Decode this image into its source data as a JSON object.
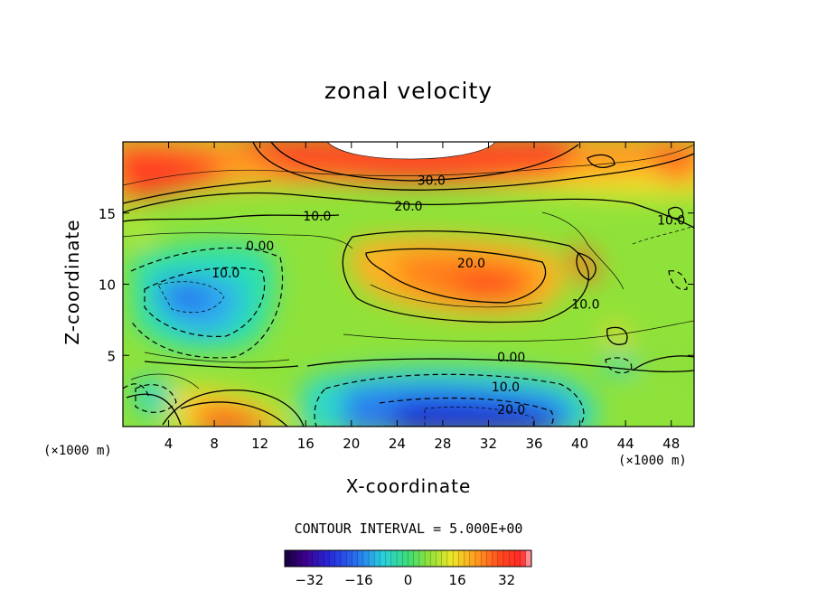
{
  "chart_data": {
    "type": "heatmap",
    "title": "zonal velocity",
    "xlabel": "X-coordinate",
    "ylabel": "Z-coordinate",
    "x_unit_label": "(×1000 m)",
    "xlim": [
      0,
      50
    ],
    "ylim": [
      0,
      20
    ],
    "x_ticks": [
      4,
      8,
      12,
      16,
      20,
      24,
      28,
      32,
      36,
      40,
      44,
      48
    ],
    "y_ticks": [
      5,
      10,
      15
    ],
    "contour_interval_label": "CONTOUR INTERVAL = 5.000E+00",
    "contour_labels": [
      {
        "text": "30.0",
        "x": 27,
        "z": 17.3
      },
      {
        "text": "20.0",
        "x": 25,
        "z": 15.5
      },
      {
        "text": "10.0",
        "x": 17,
        "z": 14.8
      },
      {
        "text": "0.00",
        "x": 12,
        "z": 12.7
      },
      {
        "text": "10.0",
        "x": 9,
        "z": 10.8
      },
      {
        "text": "20.0",
        "x": 30.5,
        "z": 11.5
      },
      {
        "text": "10.0",
        "x": 40.5,
        "z": 8.6
      },
      {
        "text": "0.00",
        "x": 34,
        "z": 4.9
      },
      {
        "text": "10.0",
        "x": 33.5,
        "z": 2.8
      },
      {
        "text": "20.0",
        "x": 34,
        "z": 1.2
      },
      {
        "text": "10.0",
        "x": 48,
        "z": 14.5
      }
    ],
    "field_features": [
      {
        "name": "upper jet core",
        "x": 27,
        "z": 19.5,
        "value": 40
      },
      {
        "name": "upper-left max",
        "x": 6,
        "z": 18,
        "value": 30
      },
      {
        "name": "upper-right max",
        "x": 49,
        "z": 18.5,
        "value": 25
      },
      {
        "name": "mid-level jet",
        "x": 32,
        "z": 10.5,
        "value": 25
      },
      {
        "name": "left negative cell",
        "x": 7,
        "z": 9.5,
        "value": -18
      },
      {
        "name": "bottom negative cell",
        "x": 32,
        "z": 1.5,
        "value": -25
      },
      {
        "name": "bottom-left positive cell",
        "x": 11,
        "z": 0.8,
        "value": 30
      },
      {
        "name": "small positive eddy",
        "x": 40.5,
        "z": 11,
        "value": 20
      }
    ],
    "colorbar": {
      "range": [
        -40,
        40
      ],
      "ticks": [
        -32,
        -16,
        0,
        16,
        32
      ],
      "tick_labels": [
        "−32",
        "−16",
        "0",
        "16",
        "32"
      ]
    }
  }
}
